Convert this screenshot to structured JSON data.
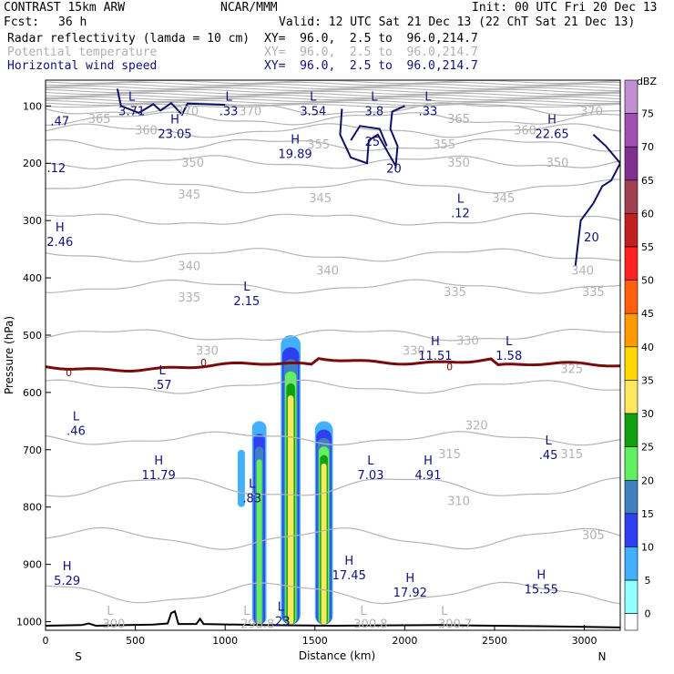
{
  "header": {
    "model": "CONTRAST 15km ARW",
    "org": "NCAR/MMM",
    "init": "Init: 00 UTC Fri 20 Dec 13",
    "fcst_label": "Fcst:",
    "fcst_value": "36 h",
    "valid": "Valid: 12 UTC Sat 21 Dec 13 (22 ChT Sat 21 Dec 13)",
    "fields": [
      {
        "name": "Radar reflectivity (lamda = 10 cm)",
        "xy": "XY=  96.0,  2.5 to  96.0,214.7"
      },
      {
        "name": "Potential temperature",
        "xy": "XY=  96.0,  2.5 to  96.0,214.7"
      },
      {
        "name": "Horizontal wind speed",
        "xy": "XY=  96.0,  2.5 to  96.0,214.7"
      }
    ]
  },
  "chart_data": {
    "type": "contour-cross-section",
    "xlabel": "Distance (km)",
    "ylabel": "Pressure (hPa)",
    "xlim": [
      0,
      3200
    ],
    "ylim": [
      1015,
      55
    ],
    "x_ticks": [
      0,
      500,
      1000,
      1500,
      2000,
      2500,
      3000
    ],
    "y_ticks": [
      100,
      200,
      300,
      400,
      500,
      600,
      700,
      800,
      900,
      1000
    ],
    "x_end_labels": {
      "left": "S",
      "right": "N"
    },
    "colorbar": {
      "unit": "dBZ",
      "levels": [
        75,
        70,
        65,
        60,
        55,
        50,
        45,
        40,
        35,
        30,
        25,
        20,
        15,
        10,
        5,
        0
      ],
      "colors": [
        "#c090d0",
        "#a050b0",
        "#803090",
        "#a04050",
        "#c02020",
        "#ff2020",
        "#ff6010",
        "#ff9a00",
        "#ffd800",
        "#ffe860",
        "#10a010",
        "#60f060",
        "#4080c0",
        "#3040f0",
        "#40b0ff",
        "#90ffff"
      ]
    },
    "theta_contours": [
      {
        "value": 370,
        "p": 105
      },
      {
        "value": 365,
        "p": 122
      },
      {
        "value": 360,
        "p": 143
      },
      {
        "value": 355,
        "p": 168
      },
      {
        "value": 350,
        "p": 198
      },
      {
        "value": 345,
        "p": 240
      },
      {
        "value": 340,
        "p": 298
      },
      {
        "value": 335,
        "p": 360
      },
      {
        "value": 330,
        "p": 415
      },
      {
        "value": 325,
        "p": 500
      },
      {
        "value": 320,
        "p": 590
      },
      {
        "value": 315,
        "p": 680
      },
      {
        "value": 310,
        "p": 765
      },
      {
        "value": 305,
        "p": 855
      },
      {
        "value": 300,
        "p": 950
      }
    ],
    "theta_labels": [
      {
        "text": "370",
        "x": 790,
        "p": 110
      },
      {
        "text": "370",
        "x": 1140,
        "p": 110
      },
      {
        "text": "370",
        "x": 3040,
        "p": 110
      },
      {
        "text": "365",
        "x": 300,
        "p": 123
      },
      {
        "text": "365",
        "x": 2300,
        "p": 123
      },
      {
        "text": "360",
        "x": 560,
        "p": 143
      },
      {
        "text": "360",
        "x": 2670,
        "p": 143
      },
      {
        "text": "355",
        "x": 1520,
        "p": 168
      },
      {
        "text": "355",
        "x": 2220,
        "p": 168
      },
      {
        "text": "350",
        "x": 820,
        "p": 200
      },
      {
        "text": "350",
        "x": 2300,
        "p": 200
      },
      {
        "text": "350",
        "x": 2850,
        "p": 200
      },
      {
        "text": "345",
        "x": 800,
        "p": 255
      },
      {
        "text": "345",
        "x": 1530,
        "p": 262
      },
      {
        "text": "345",
        "x": 2550,
        "p": 262
      },
      {
        "text": "340",
        "x": 800,
        "p": 380
      },
      {
        "text": "340",
        "x": 1570,
        "p": 388
      },
      {
        "text": "340",
        "x": 2990,
        "p": 388
      },
      {
        "text": "335",
        "x": 800,
        "p": 435
      },
      {
        "text": "335",
        "x": 2280,
        "p": 425
      },
      {
        "text": "335",
        "x": 3050,
        "p": 425
      },
      {
        "text": "330",
        "x": 900,
        "p": 528
      },
      {
        "text": "330",
        "x": 2050,
        "p": 528
      },
      {
        "text": "330",
        "x": 2350,
        "p": 510
      },
      {
        "text": "325",
        "x": 2930,
        "p": 560
      },
      {
        "text": "320",
        "x": 2400,
        "p": 658
      },
      {
        "text": "315",
        "x": 2250,
        "p": 708
      },
      {
        "text": "315",
        "x": 2930,
        "p": 708
      },
      {
        "text": "310",
        "x": 2300,
        "p": 790
      },
      {
        "text": "305",
        "x": 3050,
        "p": 850
      },
      {
        "text": "300",
        "x": 380,
        "p": 1005
      },
      {
        "text": "298.8",
        "x": 1180,
        "p": 1005
      },
      {
        "text": "300.8",
        "x": 1810,
        "p": 1005
      },
      {
        "text": "300.7",
        "x": 2280,
        "p": 1005
      },
      {
        "text": "L",
        "x": 360,
        "p": 982
      },
      {
        "text": "L",
        "x": 1120,
        "p": 982
      },
      {
        "text": "L",
        "x": 1770,
        "p": 982
      },
      {
        "text": "L",
        "x": 2220,
        "p": 982
      }
    ],
    "freezing_level": {
      "label": "0",
      "p_mean": 555
    },
    "extrema": [
      {
        "type": "L",
        "value": "3.71",
        "x": 480,
        "p": 100
      },
      {
        "type": "L",
        "value": ".33",
        "x": 1020,
        "p": 100
      },
      {
        "type": "L",
        "value": "3.54",
        "x": 1490,
        "p": 100
      },
      {
        "type": "L",
        "value": "3.8",
        "x": 1830,
        "p": 100
      },
      {
        "type": "L",
        "value": ".33",
        "x": 2130,
        "p": 100
      },
      {
        "type": "",
        "value": ".47",
        "x": 80,
        "p": 118
      },
      {
        "type": "H",
        "value": "23.05",
        "x": 720,
        "p": 140
      },
      {
        "type": "H",
        "value": "19.89",
        "x": 1390,
        "p": 175
      },
      {
        "type": "H",
        "value": "22.65",
        "x": 2820,
        "p": 140
      },
      {
        "type": "",
        "value": ".12",
        "x": 60,
        "p": 200
      },
      {
        "type": "L",
        "value": ".12",
        "x": 2310,
        "p": 278
      },
      {
        "type": "H",
        "value": "2.46",
        "x": 80,
        "p": 328
      },
      {
        "type": "L",
        "value": "2.15",
        "x": 1120,
        "p": 432
      },
      {
        "type": "H",
        "value": "11.51",
        "x": 2170,
        "p": 527
      },
      {
        "type": "L",
        "value": "1.58",
        "x": 2580,
        "p": 527
      },
      {
        "type": "L",
        "value": ".57",
        "x": 650,
        "p": 578
      },
      {
        "type": "L",
        "value": ".46",
        "x": 170,
        "p": 658
      },
      {
        "type": "L",
        "value": ".45",
        "x": 2800,
        "p": 700
      },
      {
        "type": "H",
        "value": "11.79",
        "x": 630,
        "p": 735
      },
      {
        "type": "L",
        "value": "7.03",
        "x": 1810,
        "p": 735
      },
      {
        "type": "H",
        "value": "4.91",
        "x": 2130,
        "p": 735
      },
      {
        "type": "L",
        "value": ".83",
        "x": 1150,
        "p": 776
      },
      {
        "type": "H",
        "value": "17.45",
        "x": 1690,
        "p": 910
      },
      {
        "type": "H",
        "value": "5.29",
        "x": 120,
        "p": 920
      },
      {
        "type": "H",
        "value": "17.92",
        "x": 2030,
        "p": 940
      },
      {
        "type": "H",
        "value": "15.55",
        "x": 2760,
        "p": 935
      },
      {
        "type": "L",
        "value": ".23",
        "x": 1310,
        "p": 990
      }
    ],
    "wind_speed_labels": [
      {
        "value": "25",
        "x": 1820,
        "p": 163
      },
      {
        "value": "20",
        "x": 1940,
        "p": 210
      },
      {
        "value": "20",
        "x": 3040,
        "p": 330
      }
    ],
    "reflectivity_cells": [
      {
        "x": [
          1070,
          1110
        ],
        "p_top": 700,
        "p_bot": 800,
        "max_dbz": 5
      },
      {
        "x": [
          1150,
          1230
        ],
        "p_top": 650,
        "p_bot": 1005,
        "max_dbz": 20
      },
      {
        "x": [
          1310,
          1420
        ],
        "p_top": 500,
        "p_bot": 1005,
        "max_dbz": 30
      },
      {
        "x": [
          1500,
          1600
        ],
        "p_top": 650,
        "p_bot": 1005,
        "max_dbz": 30
      }
    ]
  }
}
